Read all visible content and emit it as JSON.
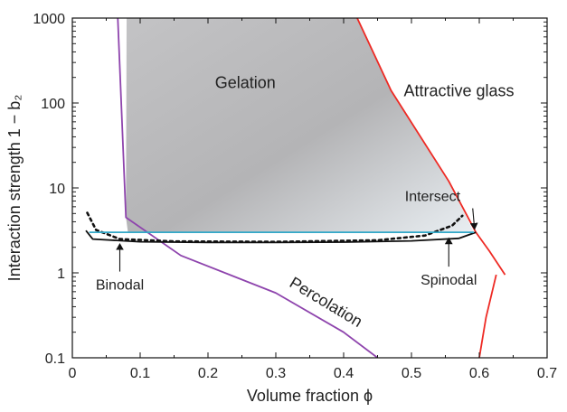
{
  "chart_data": {
    "type": "line",
    "xlabel": "Volume fraction ϕ",
    "ylabel": "Interaction strength 1 − b₂",
    "xlim": [
      0,
      0.7
    ],
    "ylim": [
      0.1,
      1000
    ],
    "yscale": "log",
    "x_ticks": [
      0,
      0.1,
      0.2,
      0.3,
      0.4,
      0.5,
      0.6,
      0.7
    ],
    "x_tick_labels": [
      "0",
      "0.1",
      "0.2",
      "0.3",
      "0.4",
      "0.5",
      "0.6",
      "0.7"
    ],
    "y_ticks": [
      0.1,
      1,
      10,
      100,
      1000
    ],
    "y_tick_labels": [
      "0.1",
      "1",
      "10",
      "100",
      "1000"
    ],
    "grid": false,
    "colors": {
      "percolation": "#8e44ad",
      "attractive_glass": "#ee2a24",
      "binodal": "#111111",
      "spinodal": "#111111",
      "tie_line": "#33a8c8",
      "gelation_fill": "#b9b9bb"
    },
    "series": [
      {
        "name": "Percolation",
        "style": "solid",
        "points": [
          [
            0.067,
            1000
          ],
          [
            0.079,
            4.5
          ],
          [
            0.16,
            1.6
          ],
          [
            0.3,
            0.58
          ],
          [
            0.4,
            0.2
          ],
          [
            0.45,
            0.1
          ]
        ]
      },
      {
        "name": "Attractive glass",
        "style": "solid",
        "points": [
          [
            0.42,
            1000
          ],
          [
            0.47,
            140
          ],
          [
            0.555,
            12
          ],
          [
            0.595,
            3.0
          ],
          [
            0.615,
            1.8
          ],
          [
            0.638,
            0.95
          ]
        ]
      },
      {
        "points": [
          [
            0.625,
            0.95
          ],
          [
            0.61,
            0.3
          ],
          [
            0.6,
            0.1
          ]
        ],
        "style": "solid",
        "color_key": "attractive_glass"
      },
      {
        "name": "Binodal",
        "style": "solid",
        "points": [
          [
            0.02,
            3.15
          ],
          [
            0.03,
            2.5
          ],
          [
            0.1,
            2.32
          ],
          [
            0.2,
            2.28
          ],
          [
            0.3,
            2.28
          ],
          [
            0.4,
            2.3
          ],
          [
            0.5,
            2.38
          ],
          [
            0.57,
            2.55
          ],
          [
            0.595,
            3.0
          ]
        ]
      },
      {
        "name": "Spinodal",
        "style": "dotted",
        "points": [
          [
            0.022,
            5.1
          ],
          [
            0.035,
            3.2
          ],
          [
            0.07,
            2.5
          ],
          [
            0.15,
            2.35
          ],
          [
            0.3,
            2.32
          ],
          [
            0.45,
            2.42
          ],
          [
            0.52,
            2.75
          ],
          [
            0.56,
            3.6
          ],
          [
            0.575,
            4.7
          ]
        ]
      },
      {
        "style": "solid",
        "color_key": "tie_line",
        "points": [
          [
            0.025,
            3.0
          ],
          [
            0.592,
            3.0
          ]
        ]
      }
    ],
    "gelation_region": [
      [
        0.08,
        1000
      ],
      [
        0.42,
        1000
      ],
      [
        0.47,
        140
      ],
      [
        0.555,
        12
      ],
      [
        0.592,
        3.0
      ],
      [
        0.082,
        3.0
      ],
      [
        0.079,
        4.5
      ]
    ],
    "region_labels": [
      {
        "text": "Gelation",
        "x": 0.255,
        "y": 150
      },
      {
        "text": "Attractive glass",
        "x": 0.57,
        "y": 120
      },
      {
        "text": "Percolation",
        "x": 0.37,
        "y": 0.4
      }
    ],
    "annotations": [
      {
        "text": "Binodal",
        "label_x": 0.07,
        "label_y": 0.7,
        "arrow_to_x": 0.07,
        "arrow_to_y": 2.35
      },
      {
        "text": "Spinodal",
        "label_x": 0.555,
        "label_y": 0.8,
        "arrow_to_x": 0.555,
        "arrow_to_y": 2.75
      },
      {
        "text": "Intersect",
        "label_x": 0.593,
        "label_y": 7.0,
        "arrow_to_x": 0.593,
        "arrow_to_y": 3.05
      }
    ]
  }
}
